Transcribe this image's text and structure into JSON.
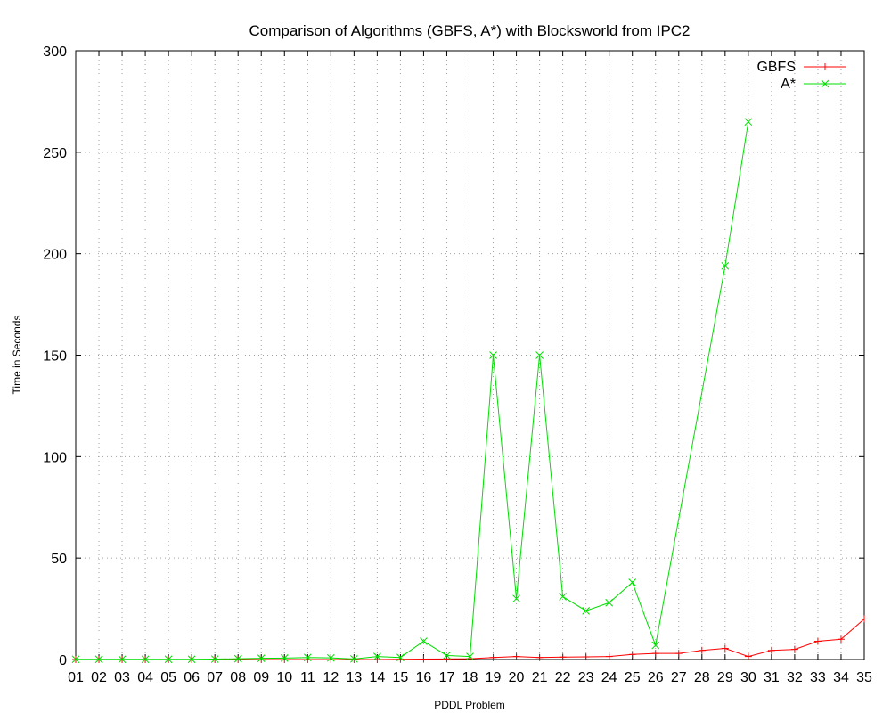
{
  "chart_data": {
    "type": "line",
    "title": "Comparison of Algorithms (GBFS, A*) with Blocksworld from IPC2",
    "xlabel": "PDDL Problem",
    "ylabel": "Time in Seconds",
    "categories": [
      "01",
      "02",
      "03",
      "04",
      "05",
      "06",
      "07",
      "08",
      "09",
      "10",
      "11",
      "12",
      "13",
      "14",
      "15",
      "16",
      "17",
      "18",
      "19",
      "20",
      "21",
      "22",
      "23",
      "24",
      "25",
      "26",
      "27",
      "28",
      "29",
      "30",
      "31",
      "32",
      "33",
      "34",
      "35"
    ],
    "ylim": [
      0,
      300
    ],
    "yticks": [
      0,
      50,
      100,
      150,
      200,
      250,
      300
    ],
    "grid": true,
    "legend_position": "top-right",
    "series": [
      {
        "name": "GBFS",
        "color": "#ff0000",
        "marker": "plus",
        "values": [
          0,
          0,
          0,
          0,
          0,
          0,
          0,
          0,
          0,
          0,
          0,
          0,
          0,
          0,
          0.1,
          0.2,
          0.3,
          0.4,
          1,
          1.5,
          1,
          1.2,
          1.3,
          1.5,
          2.5,
          3,
          3,
          4.5,
          5.5,
          1.5,
          4.5,
          5,
          9,
          10,
          20
        ]
      },
      {
        "name": "A*",
        "color": "#00dd00",
        "marker": "cross",
        "values": [
          0.1,
          0.1,
          0.1,
          0.1,
          0.1,
          0.1,
          0.2,
          0.4,
          0.6,
          0.7,
          1,
          0.8,
          0.3,
          1.5,
          1,
          9,
          2,
          1.5,
          150,
          30,
          150,
          31,
          24,
          28,
          38,
          7,
          null,
          null,
          194,
          265,
          null,
          null,
          null,
          null,
          null
        ]
      }
    ]
  }
}
